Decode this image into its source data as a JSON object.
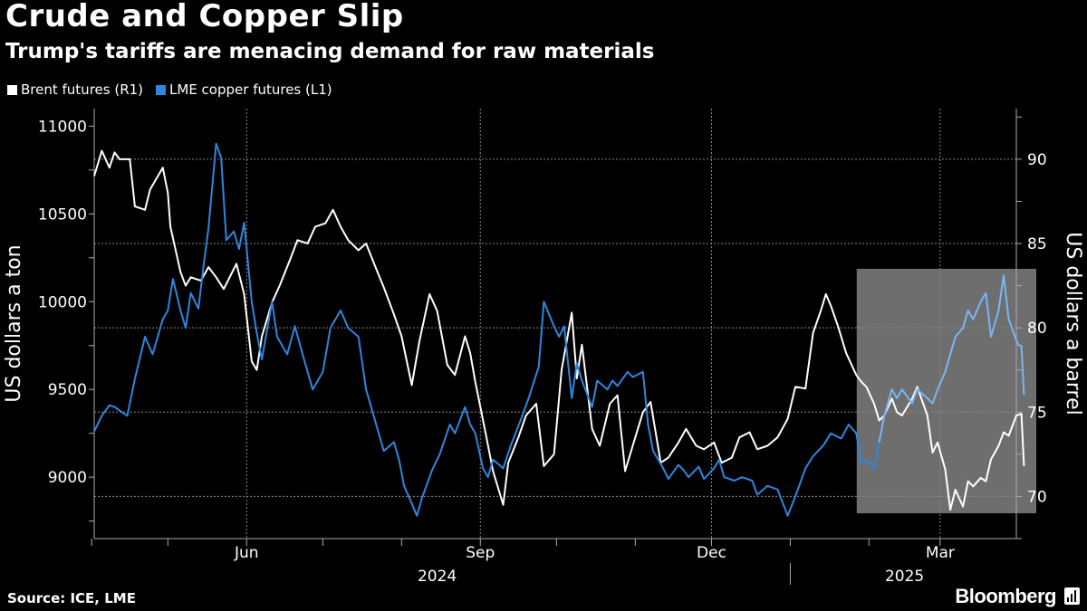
{
  "title": "Crude and Copper Slip",
  "subtitle": "Trump's tariffs are menacing demand for raw materials",
  "source": "Source: ICE, LME",
  "brand": "Bloomberg",
  "colors": {
    "background": "#000000",
    "brent": "#ffffff",
    "copper": "#2e86de",
    "highlight": "#6e6e6e",
    "copper_highlighted": "#7fb4ea"
  },
  "chart_data": {
    "type": "line",
    "title": "Crude and Copper Slip",
    "subtitle": "Trump's tariffs are menacing demand for raw materials",
    "legend_position": "top-left",
    "left_axis": {
      "label": "US dollars a ton",
      "ticks": [
        9000,
        9500,
        10000,
        10500,
        11000
      ],
      "range": [
        8650,
        11100
      ]
    },
    "right_axis": {
      "label": "US dollars a barrel",
      "ticks": [
        70,
        75,
        80,
        85,
        90
      ],
      "range": [
        67.5,
        93.0
      ]
    },
    "x_axis": {
      "range": [
        "2024-04-02",
        "2025-03-31"
      ],
      "month_labels": [
        {
          "label": "Jun",
          "date": "2024-06-01"
        },
        {
          "label": "Sep",
          "date": "2024-09-01"
        },
        {
          "label": "Dec",
          "date": "2024-12-01"
        },
        {
          "label": "Mar",
          "date": "2025-03-01"
        }
      ],
      "year_labels": [
        {
          "label": "2024",
          "date": "2024-08-15"
        },
        {
          "label": "2025",
          "date": "2025-02-15"
        }
      ],
      "ticks": [
        "2024-04-01",
        "2024-05-01",
        "2024-06-01",
        "2024-07-01",
        "2024-08-01",
        "2024-09-01",
        "2024-10-01",
        "2024-11-01",
        "2024-12-01",
        "2025-01-01",
        "2025-02-01",
        "2025-03-01"
      ],
      "year_divider": "2025-01-01"
    },
    "grid": true,
    "highlight_region": {
      "start": "2025-02-04",
      "end": "2025-03-31"
    },
    "series": [
      {
        "name": "Brent futures (R1)",
        "axis": "right",
        "color": "#ffffff",
        "points": [
          [
            "2024-04-02",
            89.0
          ],
          [
            "2024-04-05",
            90.5
          ],
          [
            "2024-04-08",
            89.5
          ],
          [
            "2024-04-10",
            90.4
          ],
          [
            "2024-04-12",
            90.0
          ],
          [
            "2024-04-16",
            90.0
          ],
          [
            "2024-04-18",
            87.2
          ],
          [
            "2024-04-22",
            87.0
          ],
          [
            "2024-04-24",
            88.2
          ],
          [
            "2024-04-29",
            89.5
          ],
          [
            "2024-05-01",
            88.0
          ],
          [
            "2024-05-02",
            86.0
          ],
          [
            "2024-05-06",
            83.3
          ],
          [
            "2024-05-08",
            82.5
          ],
          [
            "2024-05-10",
            83.0
          ],
          [
            "2024-05-14",
            82.8
          ],
          [
            "2024-05-17",
            83.6
          ],
          [
            "2024-05-20",
            83.0
          ],
          [
            "2024-05-23",
            82.3
          ],
          [
            "2024-05-28",
            83.8
          ],
          [
            "2024-05-31",
            82.0
          ],
          [
            "2024-06-03",
            78.0
          ],
          [
            "2024-06-05",
            77.5
          ],
          [
            "2024-06-07",
            79.5
          ],
          [
            "2024-06-11",
            81.5
          ],
          [
            "2024-06-14",
            82.5
          ],
          [
            "2024-06-18",
            84.0
          ],
          [
            "2024-06-21",
            85.2
          ],
          [
            "2024-06-25",
            85.0
          ],
          [
            "2024-06-28",
            86.0
          ],
          [
            "2024-07-02",
            86.2
          ],
          [
            "2024-07-05",
            87.0
          ],
          [
            "2024-07-08",
            86.0
          ],
          [
            "2024-07-11",
            85.2
          ],
          [
            "2024-07-15",
            84.6
          ],
          [
            "2024-07-18",
            85.0
          ],
          [
            "2024-07-22",
            83.5
          ],
          [
            "2024-07-25",
            82.4
          ],
          [
            "2024-07-29",
            80.8
          ],
          [
            "2024-08-01",
            79.5
          ],
          [
            "2024-08-05",
            76.6
          ],
          [
            "2024-08-08",
            79.2
          ],
          [
            "2024-08-12",
            82.0
          ],
          [
            "2024-08-15",
            81.0
          ],
          [
            "2024-08-19",
            77.8
          ],
          [
            "2024-08-22",
            77.2
          ],
          [
            "2024-08-26",
            79.5
          ],
          [
            "2024-08-28",
            78.5
          ],
          [
            "2024-08-30",
            76.8
          ],
          [
            "2024-09-03",
            73.8
          ],
          [
            "2024-09-06",
            71.5
          ],
          [
            "2024-09-10",
            69.5
          ],
          [
            "2024-09-12",
            72.0
          ],
          [
            "2024-09-16",
            73.5
          ],
          [
            "2024-09-19",
            74.8
          ],
          [
            "2024-09-23",
            75.5
          ],
          [
            "2024-09-26",
            71.8
          ],
          [
            "2024-09-30",
            72.5
          ],
          [
            "2024-10-03",
            77.5
          ],
          [
            "2024-10-07",
            80.9
          ],
          [
            "2024-10-09",
            77.0
          ],
          [
            "2024-10-11",
            79.0
          ],
          [
            "2024-10-15",
            74.0
          ],
          [
            "2024-10-18",
            73.0
          ],
          [
            "2024-10-22",
            75.5
          ],
          [
            "2024-10-25",
            76.0
          ],
          [
            "2024-10-28",
            71.5
          ],
          [
            "2024-10-31",
            73.0
          ],
          [
            "2024-11-04",
            75.0
          ],
          [
            "2024-11-07",
            75.6
          ],
          [
            "2024-11-11",
            72.0
          ],
          [
            "2024-11-14",
            72.3
          ],
          [
            "2024-11-18",
            73.2
          ],
          [
            "2024-11-21",
            74.0
          ],
          [
            "2024-11-25",
            73.0
          ],
          [
            "2024-11-28",
            72.8
          ],
          [
            "2024-12-02",
            73.2
          ],
          [
            "2024-12-05",
            72.0
          ],
          [
            "2024-12-09",
            72.3
          ],
          [
            "2024-12-12",
            73.5
          ],
          [
            "2024-12-16",
            73.8
          ],
          [
            "2024-12-19",
            72.8
          ],
          [
            "2024-12-23",
            73.0
          ],
          [
            "2024-12-27",
            73.5
          ],
          [
            "2024-12-31",
            74.6
          ],
          [
            "2025-01-03",
            76.5
          ],
          [
            "2025-01-07",
            76.4
          ],
          [
            "2025-01-10",
            79.7
          ],
          [
            "2025-01-13",
            81.0
          ],
          [
            "2025-01-15",
            82.0
          ],
          [
            "2025-01-17",
            81.3
          ],
          [
            "2025-01-20",
            80.0
          ],
          [
            "2025-01-23",
            78.5
          ],
          [
            "2025-01-27",
            77.2
          ],
          [
            "2025-01-29",
            76.8
          ],
          [
            "2025-01-31",
            76.5
          ],
          [
            "2025-02-03",
            75.5
          ],
          [
            "2025-02-05",
            74.5
          ],
          [
            "2025-02-07",
            74.8
          ],
          [
            "2025-02-10",
            75.8
          ],
          [
            "2025-02-12",
            75.0
          ],
          [
            "2025-02-14",
            74.8
          ],
          [
            "2025-02-18",
            75.8
          ],
          [
            "2025-02-20",
            76.5
          ],
          [
            "2025-02-24",
            74.8
          ],
          [
            "2025-02-26",
            72.6
          ],
          [
            "2025-02-28",
            73.2
          ],
          [
            "2025-03-03",
            71.6
          ],
          [
            "2025-03-05",
            69.2
          ],
          [
            "2025-03-07",
            70.4
          ],
          [
            "2025-03-10",
            69.4
          ],
          [
            "2025-03-12",
            70.9
          ],
          [
            "2025-03-14",
            70.6
          ],
          [
            "2025-03-17",
            71.1
          ],
          [
            "2025-03-19",
            70.9
          ],
          [
            "2025-03-21",
            72.2
          ],
          [
            "2025-03-24",
            73.0
          ],
          [
            "2025-03-26",
            73.8
          ],
          [
            "2025-03-28",
            73.6
          ],
          [
            "2025-03-31",
            74.8
          ],
          [
            "2025-04-02",
            74.9
          ],
          [
            "2025-04-03",
            71.8
          ]
        ]
      },
      {
        "name": "LME copper futures (L1)",
        "axis": "left",
        "color": "#2e86de",
        "points": [
          [
            "2024-04-02",
            9260
          ],
          [
            "2024-04-05",
            9350
          ],
          [
            "2024-04-08",
            9410
          ],
          [
            "2024-04-10",
            9400
          ],
          [
            "2024-04-15",
            9350
          ],
          [
            "2024-04-18",
            9560
          ],
          [
            "2024-04-22",
            9800
          ],
          [
            "2024-04-25",
            9700
          ],
          [
            "2024-04-29",
            9900
          ],
          [
            "2024-05-01",
            9950
          ],
          [
            "2024-05-03",
            10130
          ],
          [
            "2024-05-06",
            9950
          ],
          [
            "2024-05-08",
            9850
          ],
          [
            "2024-05-10",
            10050
          ],
          [
            "2024-05-13",
            9960
          ],
          [
            "2024-05-15",
            10200
          ],
          [
            "2024-05-17",
            10420
          ],
          [
            "2024-05-20",
            10900
          ],
          [
            "2024-05-22",
            10820
          ],
          [
            "2024-05-24",
            10350
          ],
          [
            "2024-05-27",
            10400
          ],
          [
            "2024-05-29",
            10300
          ],
          [
            "2024-05-31",
            10450
          ],
          [
            "2024-06-03",
            10000
          ],
          [
            "2024-06-05",
            9820
          ],
          [
            "2024-06-07",
            9670
          ],
          [
            "2024-06-11",
            10000
          ],
          [
            "2024-06-13",
            9800
          ],
          [
            "2024-06-17",
            9700
          ],
          [
            "2024-06-20",
            9860
          ],
          [
            "2024-06-24",
            9650
          ],
          [
            "2024-06-27",
            9500
          ],
          [
            "2024-07-01",
            9600
          ],
          [
            "2024-07-04",
            9850
          ],
          [
            "2024-07-08",
            9950
          ],
          [
            "2024-07-11",
            9850
          ],
          [
            "2024-07-15",
            9800
          ],
          [
            "2024-07-18",
            9500
          ],
          [
            "2024-07-22",
            9300
          ],
          [
            "2024-07-25",
            9150
          ],
          [
            "2024-07-29",
            9200
          ],
          [
            "2024-07-31",
            9100
          ],
          [
            "2024-08-02",
            8950
          ],
          [
            "2024-08-05",
            8850
          ],
          [
            "2024-08-07",
            8780
          ],
          [
            "2024-08-09",
            8880
          ],
          [
            "2024-08-13",
            9040
          ],
          [
            "2024-08-16",
            9130
          ],
          [
            "2024-08-20",
            9300
          ],
          [
            "2024-08-22",
            9250
          ],
          [
            "2024-08-26",
            9400
          ],
          [
            "2024-08-28",
            9300
          ],
          [
            "2024-08-30",
            9250
          ],
          [
            "2024-09-02",
            9050
          ],
          [
            "2024-09-04",
            9000
          ],
          [
            "2024-09-06",
            9100
          ],
          [
            "2024-09-10",
            9050
          ],
          [
            "2024-09-13",
            9180
          ],
          [
            "2024-09-17",
            9330
          ],
          [
            "2024-09-20",
            9450
          ],
          [
            "2024-09-24",
            9630
          ],
          [
            "2024-09-26",
            10000
          ],
          [
            "2024-09-30",
            9860
          ],
          [
            "2024-10-02",
            9800
          ],
          [
            "2024-10-04",
            9860
          ],
          [
            "2024-10-07",
            9450
          ],
          [
            "2024-10-09",
            9650
          ],
          [
            "2024-10-11",
            9550
          ],
          [
            "2024-10-15",
            9400
          ],
          [
            "2024-10-17",
            9550
          ],
          [
            "2024-10-21",
            9500
          ],
          [
            "2024-10-23",
            9550
          ],
          [
            "2024-10-25",
            9520
          ],
          [
            "2024-10-29",
            9600
          ],
          [
            "2024-10-31",
            9570
          ],
          [
            "2024-11-04",
            9600
          ],
          [
            "2024-11-06",
            9300
          ],
          [
            "2024-11-08",
            9150
          ],
          [
            "2024-11-12",
            9050
          ],
          [
            "2024-11-14",
            8990
          ],
          [
            "2024-11-18",
            9070
          ],
          [
            "2024-11-20",
            9040
          ],
          [
            "2024-11-22",
            9000
          ],
          [
            "2024-11-26",
            9060
          ],
          [
            "2024-11-28",
            8990
          ],
          [
            "2024-12-02",
            9050
          ],
          [
            "2024-12-04",
            9100
          ],
          [
            "2024-12-06",
            9000
          ],
          [
            "2024-12-10",
            8980
          ],
          [
            "2024-12-13",
            9000
          ],
          [
            "2024-12-17",
            8980
          ],
          [
            "2024-12-19",
            8900
          ],
          [
            "2024-12-23",
            8950
          ],
          [
            "2024-12-27",
            8930
          ],
          [
            "2024-12-31",
            8780
          ],
          [
            "2025-01-03",
            8890
          ],
          [
            "2025-01-07",
            9050
          ],
          [
            "2025-01-10",
            9120
          ],
          [
            "2025-01-14",
            9180
          ],
          [
            "2025-01-17",
            9250
          ],
          [
            "2025-01-21",
            9220
          ],
          [
            "2025-01-24",
            9300
          ],
          [
            "2025-01-27",
            9250
          ],
          [
            "2025-01-29",
            9080
          ],
          [
            "2025-01-31",
            9100
          ],
          [
            "2025-02-03",
            9050
          ],
          [
            "2025-02-05",
            9200
          ],
          [
            "2025-02-07",
            9350
          ],
          [
            "2025-02-10",
            9500
          ],
          [
            "2025-02-12",
            9450
          ],
          [
            "2025-02-14",
            9500
          ],
          [
            "2025-02-18",
            9420
          ],
          [
            "2025-02-20",
            9500
          ],
          [
            "2025-02-24",
            9450
          ],
          [
            "2025-02-26",
            9420
          ],
          [
            "2025-02-28",
            9500
          ],
          [
            "2025-03-03",
            9600
          ],
          [
            "2025-03-05",
            9700
          ],
          [
            "2025-03-07",
            9800
          ],
          [
            "2025-03-10",
            9850
          ],
          [
            "2025-03-12",
            9950
          ],
          [
            "2025-03-14",
            9900
          ],
          [
            "2025-03-17",
            10000
          ],
          [
            "2025-03-19",
            10050
          ],
          [
            "2025-03-21",
            9800
          ],
          [
            "2025-03-24",
            9950
          ],
          [
            "2025-03-26",
            10150
          ],
          [
            "2025-03-28",
            9900
          ],
          [
            "2025-03-31",
            9780
          ],
          [
            "2025-04-01",
            9750
          ],
          [
            "2025-04-02",
            9750
          ],
          [
            "2025-04-03",
            9470
          ]
        ]
      }
    ]
  }
}
